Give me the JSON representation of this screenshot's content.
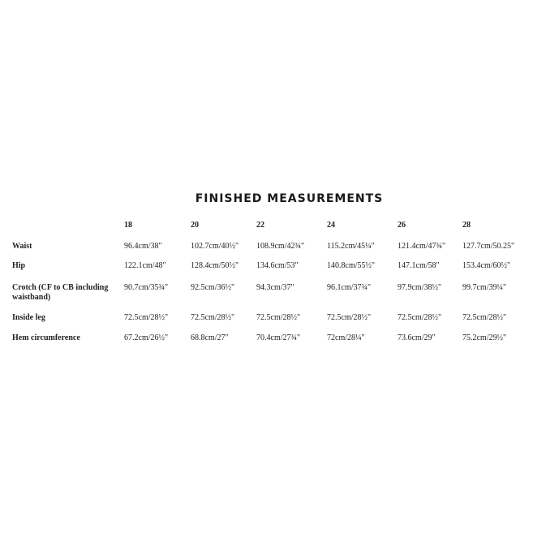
{
  "title": "FINISHED MEASUREMENTS",
  "sizes": [
    "18",
    "20",
    "22",
    "24",
    "26",
    "28"
  ],
  "rows": [
    {
      "label": "Waist",
      "values": [
        "96.4cm/38\"",
        "102.7cm/40½\"",
        "108.9cm/42¾\"",
        "115.2cm/45¼\"",
        "121.4cm/47¾\"",
        "127.7cm/50.25\""
      ]
    },
    {
      "label": "Hip",
      "values": [
        "122.1cm/48\"",
        "128.4cm/50½\"",
        "134.6cm/53\"",
        "140.8cm/55½\"",
        "147.1cm/58\"",
        "153.4cm/60½\""
      ]
    },
    {
      "label": "Crotch (CF to CB including waistband)",
      "values": [
        "90.7cm/35¾\"",
        "92.5cm/36½\"",
        "94.3cm/37\"",
        "96.1cm/37¾\"",
        "97.9cm/38½\"",
        "99.7cm/39¼\""
      ]
    },
    {
      "label": "Inside leg",
      "values": [
        "72.5cm/28½\"",
        "72.5cm/28½\"",
        "72.5cm/28½\"",
        "72.5cm/28½\"",
        "72.5cm/28½\"",
        "72.5cm/28½\""
      ]
    },
    {
      "label": "Hem circumference",
      "values": [
        "67.2cm/26½\"",
        "68.8cm/27\"",
        "70.4cm/27¾\"",
        "72cm/28¼\"",
        "73.6cm/29\"",
        "75.2cm/29½\""
      ]
    }
  ]
}
